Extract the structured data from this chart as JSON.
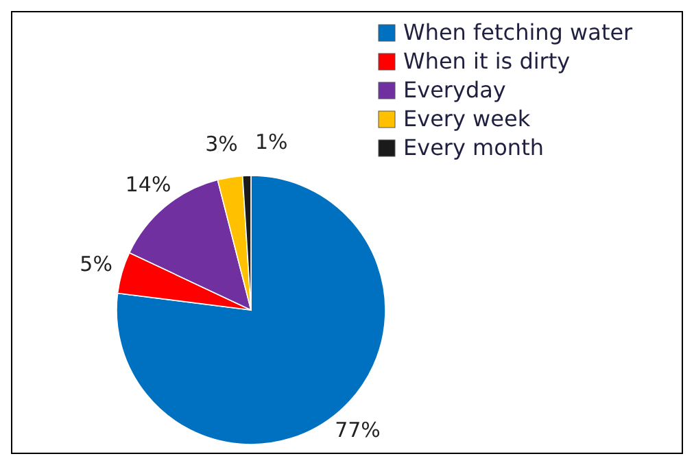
{
  "chart_data": {
    "type": "pie",
    "categories": [
      "When fetching water",
      "When it is dirty",
      "Everyday",
      "Every week",
      "Every month"
    ],
    "values": [
      77,
      5,
      14,
      3,
      1
    ],
    "colors": [
      "#0070c0",
      "#ff0000",
      "#7030a0",
      "#ffc000",
      "#1a1a1a"
    ],
    "value_labels": [
      "77%",
      "5%",
      "14%",
      "3%",
      "1%"
    ],
    "legend": "top right"
  }
}
